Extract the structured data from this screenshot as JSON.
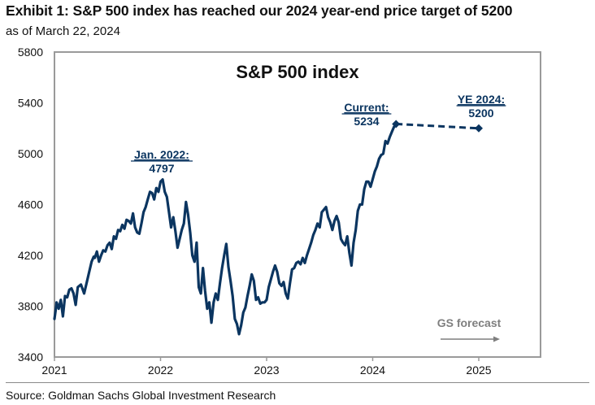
{
  "header": {
    "title": "Exhibit 1: S&P 500 index has reached our 2024 year-end price target of 5200",
    "subtitle": "as of March 22, 2024"
  },
  "footer": {
    "source": "Source: Goldman Sachs Global Investment Research"
  },
  "colors": {
    "series": "#0b3560",
    "axis": "#9a9a9a",
    "forecast_label": "#7f7f7f"
  },
  "chart_data": {
    "type": "line",
    "title": "S&P 500 index",
    "xlabel": "",
    "ylabel": "",
    "xlim": [
      2021.0,
      2025.0
    ],
    "ylim": [
      3400,
      5800
    ],
    "grid": false,
    "x_ticks": [
      2021,
      2022,
      2023,
      2024,
      2025
    ],
    "x_tick_labels": [
      "2021",
      "2022",
      "2023",
      "2024",
      "2025"
    ],
    "y_ticks": [
      3400,
      3800,
      4200,
      4600,
      5000,
      5400,
      5800
    ],
    "y_tick_labels": [
      "3400",
      "3800",
      "4200",
      "4600",
      "5000",
      "5400",
      "5800"
    ],
    "series": [
      {
        "name": "S&P 500 index",
        "style": "solid",
        "x": [
          2021.0,
          2021.01,
          2021.02,
          2021.04,
          2021.06,
          2021.08,
          2021.1,
          2021.12,
          2021.14,
          2021.16,
          2021.18,
          2021.2,
          2021.22,
          2021.25,
          2021.28,
          2021.3,
          2021.33,
          2021.35,
          2021.37,
          2021.38,
          2021.4,
          2021.42,
          2021.44,
          2021.46,
          2021.48,
          2021.5,
          2021.52,
          2021.54,
          2021.56,
          2021.58,
          2021.6,
          2021.62,
          2021.64,
          2021.66,
          2021.68,
          2021.7,
          2021.72,
          2021.74,
          2021.76,
          2021.78,
          2021.8,
          2021.82,
          2021.84,
          2021.86,
          2021.88,
          2021.9,
          2021.92,
          2021.94,
          2021.96,
          2021.98,
          2022.0,
          2022.02,
          2022.04,
          2022.06,
          2022.08,
          2022.1,
          2022.12,
          2022.14,
          2022.16,
          2022.18,
          2022.2,
          2022.22,
          2022.24,
          2022.26,
          2022.28,
          2022.3,
          2022.32,
          2022.34,
          2022.36,
          2022.38,
          2022.4,
          2022.42,
          2022.44,
          2022.46,
          2022.48,
          2022.5,
          2022.52,
          2022.54,
          2022.56,
          2022.58,
          2022.6,
          2022.62,
          2022.64,
          2022.66,
          2022.68,
          2022.7,
          2022.72,
          2022.74,
          2022.76,
          2022.78,
          2022.8,
          2022.82,
          2022.84,
          2022.86,
          2022.88,
          2022.9,
          2022.92,
          2022.94,
          2022.96,
          2022.98,
          2023.0,
          2023.02,
          2023.04,
          2023.06,
          2023.08,
          2023.1,
          2023.12,
          2023.14,
          2023.16,
          2023.18,
          2023.2,
          2023.22,
          2023.24,
          2023.26,
          2023.28,
          2023.3,
          2023.32,
          2023.34,
          2023.36,
          2023.38,
          2023.4,
          2023.42,
          2023.44,
          2023.46,
          2023.48,
          2023.5,
          2023.52,
          2023.54,
          2023.56,
          2023.58,
          2023.6,
          2023.62,
          2023.64,
          2023.66,
          2023.68,
          2023.7,
          2023.72,
          2023.74,
          2023.76,
          2023.78,
          2023.8,
          2023.82,
          2023.84,
          2023.86,
          2023.88,
          2023.9,
          2023.92,
          2023.94,
          2023.96,
          2023.98,
          2024.0,
          2024.02,
          2024.04,
          2024.06,
          2024.08,
          2024.1,
          2024.12,
          2024.14,
          2024.16,
          2024.18,
          2024.2,
          2024.22
        ],
        "values": [
          3700,
          3760,
          3830,
          3780,
          3850,
          3720,
          3880,
          3870,
          3930,
          3940,
          3900,
          3810,
          3950,
          3970,
          3900,
          3970,
          4080,
          4150,
          4190,
          4180,
          4230,
          4150,
          4200,
          4240,
          4230,
          4280,
          4300,
          4250,
          4350,
          4330,
          4400,
          4390,
          4440,
          4410,
          4480,
          4470,
          4450,
          4530,
          4420,
          4380,
          4370,
          4450,
          4540,
          4580,
          4640,
          4700,
          4690,
          4640,
          4730,
          4700,
          4780,
          4797,
          4700,
          4660,
          4540,
          4420,
          4500,
          4390,
          4260,
          4330,
          4400,
          4450,
          4620,
          4520,
          4380,
          4200,
          4150,
          4300,
          3950,
          3900,
          4100,
          3920,
          3780,
          3830,
          3670,
          3830,
          3900,
          3850,
          3980,
          4100,
          4200,
          4290,
          4110,
          4000,
          3880,
          3700,
          3660,
          3580,
          3650,
          3750,
          3790,
          3880,
          3960,
          4050,
          4000,
          3850,
          3870,
          3820,
          3830,
          3830,
          3850,
          3950,
          4010,
          4070,
          4120,
          4070,
          3980,
          3960,
          3990,
          3900,
          3860,
          3980,
          4090,
          4100,
          4140,
          4150,
          4130,
          4180,
          4140,
          4200,
          4250,
          4300,
          4360,
          4400,
          4450,
          4420,
          4540,
          4560,
          4580,
          4500,
          4460,
          4400,
          4470,
          4510,
          4460,
          4330,
          4300,
          4280,
          4350,
          4220,
          4120,
          4300,
          4400,
          4550,
          4600,
          4600,
          4720,
          4780,
          4780,
          4740,
          4800,
          4860,
          4900,
          4960,
          4990,
          5000,
          5100,
          5080,
          5130,
          5170,
          5210,
          5234
        ]
      },
      {
        "name": "GS forecast",
        "style": "dashed",
        "x": [
          2024.22,
          2025.0
        ],
        "values": [
          5234,
          5200
        ]
      }
    ],
    "annotations": [
      {
        "label": "Jan. 2022:",
        "value": "4797",
        "x": 2022.01,
        "y": 4797
      },
      {
        "label": "Current:",
        "value": "5234",
        "x": 2024.22,
        "y": 5234,
        "marker": "diamond"
      },
      {
        "label": "YE 2024:",
        "value": "5200",
        "x": 2025.0,
        "y": 5200,
        "marker": "diamond"
      },
      {
        "label": "GS forecast",
        "arrow": "right"
      }
    ]
  }
}
